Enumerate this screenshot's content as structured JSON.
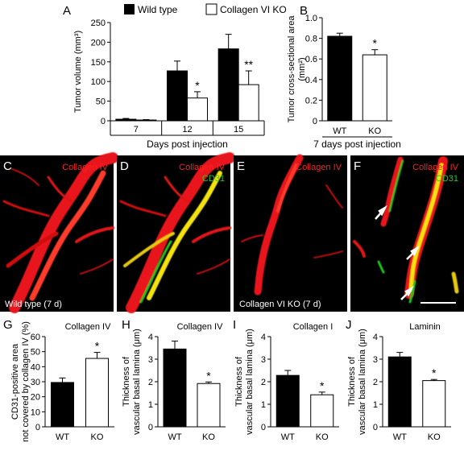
{
  "panel_letters": {
    "A": "A",
    "B": "B",
    "C": "C",
    "D": "D",
    "E": "E",
    "F": "F",
    "G": "G",
    "H": "H",
    "I": "I",
    "J": "J"
  },
  "colors": {
    "wild_type": "#000000",
    "ko": "#ffffff",
    "collagen": "#ff2020",
    "cd31": "#22cc22",
    "overlap": "#ffee00"
  },
  "micrographs": {
    "C": {
      "stain": "Collagen IV",
      "caption": "Wild type (7 d)"
    },
    "D": {
      "stain": "Collagen IV",
      "stain2": "CD31"
    },
    "E": {
      "stain": "Collagen IV",
      "caption": "Collagen VI KO (7 d)"
    },
    "F": {
      "stain": "Collagen IV",
      "stain2": "CD31"
    }
  },
  "chart_data": [
    {
      "panel": "A",
      "type": "bar",
      "categories": [
        "7",
        "12",
        "15"
      ],
      "legend": [
        "Wild type",
        "Collagen VI KO"
      ],
      "series": [
        {
          "name": "Wild type",
          "values": [
            4,
            127,
            183
          ],
          "errors": [
            2,
            25,
            37
          ],
          "color": "#000000"
        },
        {
          "name": "Collagen VI KO",
          "values": [
            2,
            58,
            92
          ],
          "errors": [
            1,
            16,
            35
          ],
          "color": "#ffffff"
        }
      ],
      "significance": [
        "",
        "*",
        "**"
      ],
      "ylabel": "Tumor volume (mm³)",
      "xlabel": "Days post injection",
      "ylim": [
        0,
        250
      ],
      "yticks": [
        "0",
        "50",
        "100",
        "150",
        "200",
        "250"
      ]
    },
    {
      "panel": "B",
      "type": "bar",
      "categories": [
        "WT",
        "KO"
      ],
      "values": [
        0.82,
        0.64
      ],
      "errors": [
        0.03,
        0.05
      ],
      "significance": [
        "",
        "*"
      ],
      "ylabel": "Tumor cross-sectional area (mm²)",
      "xlabel": "7 days post injection",
      "ylim": [
        0,
        1.0
      ],
      "yticks": [
        "0",
        "0.2",
        "0.4",
        "0.6",
        "0.8",
        "1.0"
      ]
    },
    {
      "panel": "G",
      "type": "bar",
      "title": "Collagen IV",
      "categories": [
        "WT",
        "KO"
      ],
      "values": [
        29.5,
        45.5
      ],
      "errors": [
        3,
        4
      ],
      "significance": [
        "",
        "*"
      ],
      "ylabel": "CD31-positive area not covered by collagen IV (%)",
      "ylim": [
        0,
        60
      ],
      "yticks": [
        "0",
        "10",
        "20",
        "30",
        "40",
        "50",
        "60"
      ]
    },
    {
      "panel": "H",
      "type": "bar",
      "title": "Collagen IV",
      "categories": [
        "WT",
        "KO"
      ],
      "values": [
        3.45,
        1.92
      ],
      "errors": [
        0.35,
        0.07
      ],
      "significance": [
        "",
        "*"
      ],
      "ylabel": "Thickness of vascular basal lamina (μm)",
      "ylim": [
        0,
        4
      ],
      "yticks": [
        "0",
        "1",
        "2",
        "3",
        "4"
      ]
    },
    {
      "panel": "I",
      "type": "bar",
      "title": "Collagen I",
      "categories": [
        "WT",
        "KO"
      ],
      "values": [
        2.28,
        1.42
      ],
      "errors": [
        0.22,
        0.12
      ],
      "significance": [
        "",
        "*"
      ],
      "ylabel": "Thickness of vascular basal lamina (μm)",
      "ylim": [
        0,
        4
      ],
      "yticks": [
        "0",
        "1",
        "2",
        "3",
        "4"
      ]
    },
    {
      "panel": "J",
      "type": "bar",
      "title": "Laminin",
      "categories": [
        "WT",
        "KO"
      ],
      "values": [
        3.1,
        2.05
      ],
      "errors": [
        0.2,
        0.05
      ],
      "significance": [
        "",
        "*"
      ],
      "ylabel": "Thickness of vascular basal lamina (μm)",
      "ylim": [
        0,
        4
      ],
      "yticks": [
        "0",
        "1",
        "2",
        "3",
        "4"
      ]
    }
  ]
}
